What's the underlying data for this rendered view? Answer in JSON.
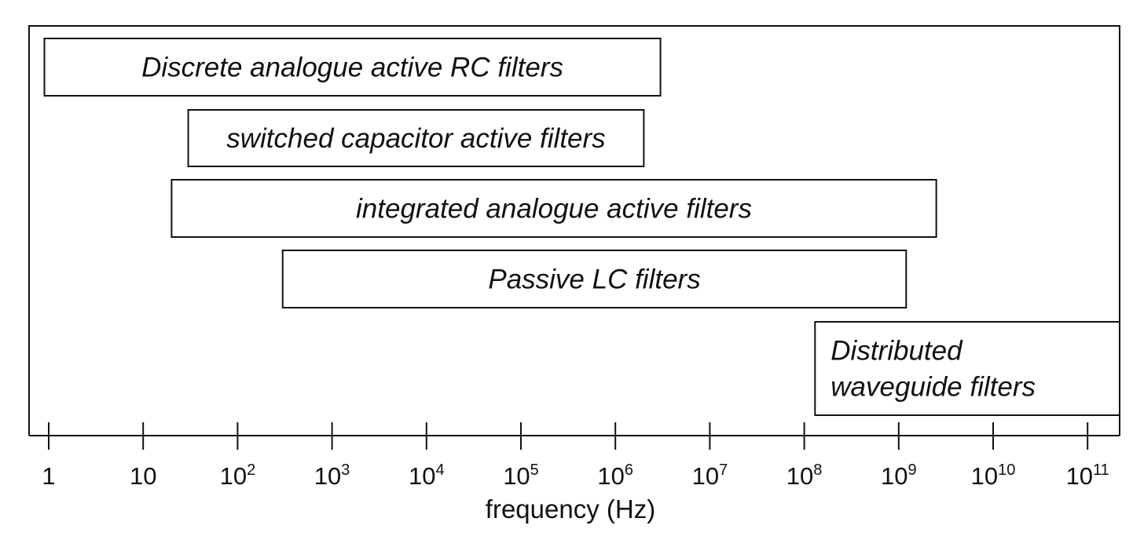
{
  "chart_data": {
    "type": "range-bar",
    "xscale": "log10",
    "xlim": [
      0.8,
      160000000000.0
    ],
    "xlabel": "frequency (Hz)",
    "ticks": [
      {
        "value": 1,
        "base": "1",
        "exp": ""
      },
      {
        "value": 10,
        "base": "10",
        "exp": ""
      },
      {
        "value": 100,
        "base": "10",
        "exp": "2"
      },
      {
        "value": 1000,
        "base": "10",
        "exp": "3"
      },
      {
        "value": 10000,
        "base": "10",
        "exp": "4"
      },
      {
        "value": 100000,
        "base": "10",
        "exp": "5"
      },
      {
        "value": 1000000,
        "base": "10",
        "exp": "6"
      },
      {
        "value": 10000000,
        "base": "10",
        "exp": "7"
      },
      {
        "value": 100000000,
        "base": "10",
        "exp": "8"
      },
      {
        "value": 1000000000,
        "base": "10",
        "exp": "9"
      },
      {
        "value": 10000000000,
        "base": "10",
        "exp": "10"
      },
      {
        "value": 100000000000,
        "base": "10",
        "exp": "11"
      }
    ],
    "bands": [
      {
        "label_lines": [
          "Discrete analogue active RC filters"
        ],
        "start": 0.9,
        "end": 3000000,
        "align": "center"
      },
      {
        "label_lines": [
          "switched capacitor active filters"
        ],
        "start": 30,
        "end": 2000000,
        "align": "center"
      },
      {
        "label_lines": [
          "integrated analogue active filters"
        ],
        "start": 20,
        "end": 2500000000,
        "align": "center"
      },
      {
        "label_lines": [
          "Passive LC filters"
        ],
        "start": 300,
        "end": 1200000000,
        "align": "center"
      },
      {
        "label_lines": [
          "Distributed",
          "waveguide filters"
        ],
        "start": 130000000,
        "end": 1600000000000,
        "align": "left"
      }
    ]
  }
}
